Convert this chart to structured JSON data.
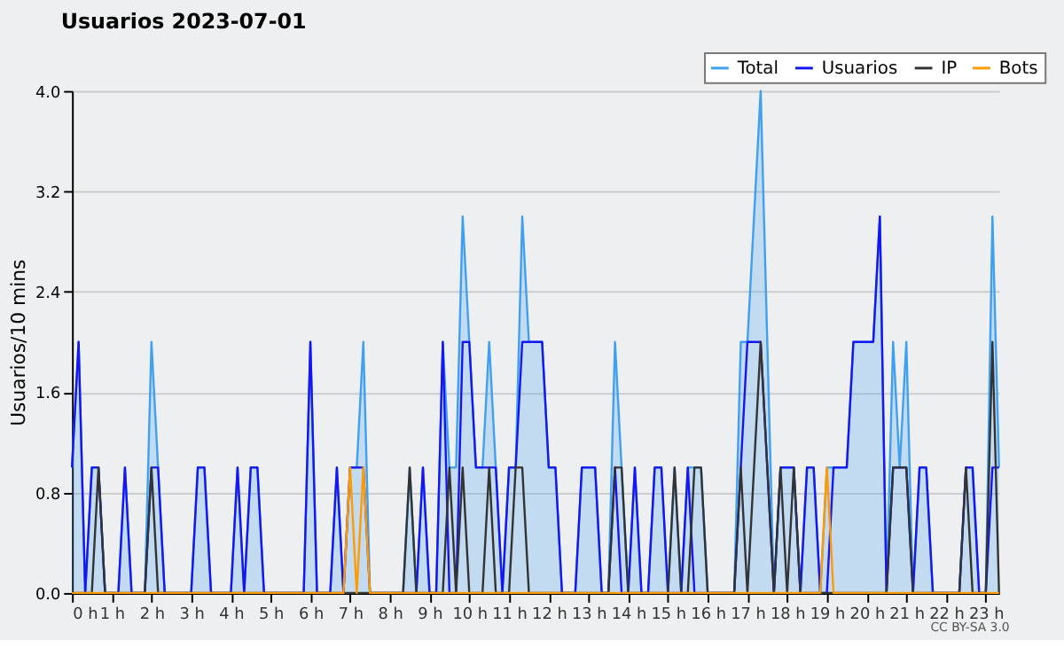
{
  "chart_data": {
    "type": "line",
    "title": "Usuarios  2023-07-01",
    "ylabel": "Usuarios/10 mins",
    "annotations": [
      "CC BY-SA 3.0"
    ],
    "x": [
      0,
      0.167,
      0.333,
      0.5,
      0.667,
      0.833,
      1,
      1.167,
      1.333,
      1.5,
      1.667,
      1.833,
      2,
      2.167,
      2.333,
      2.5,
      2.667,
      2.833,
      3,
      3.167,
      3.333,
      3.5,
      3.667,
      3.833,
      4,
      4.167,
      4.333,
      4.5,
      4.667,
      4.833,
      5,
      5.167,
      5.333,
      5.5,
      5.667,
      5.833,
      6,
      6.167,
      6.333,
      6.5,
      6.667,
      6.833,
      7,
      7.167,
      7.333,
      7.5,
      7.667,
      7.833,
      8,
      8.167,
      8.333,
      8.5,
      8.667,
      8.833,
      9,
      9.167,
      9.333,
      9.5,
      9.667,
      9.833,
      10,
      10.167,
      10.333,
      10.5,
      10.667,
      10.833,
      11,
      11.167,
      11.333,
      11.5,
      11.667,
      11.833,
      12,
      12.167,
      12.333,
      12.5,
      12.667,
      12.833,
      13,
      13.167,
      13.333,
      13.5,
      13.667,
      13.833,
      14,
      14.167,
      14.333,
      14.5,
      14.667,
      14.833,
      15,
      15.167,
      15.333,
      15.5,
      15.667,
      15.833,
      16,
      16.167,
      16.333,
      16.5,
      16.667,
      16.833,
      17,
      17.167,
      17.333,
      17.5,
      17.667,
      17.833,
      18,
      18.167,
      18.333,
      18.5,
      18.667,
      18.833,
      19,
      19.167,
      19.333,
      19.5,
      19.667,
      19.833,
      20,
      20.167,
      20.333,
      20.5,
      20.667,
      20.833,
      21,
      21.167,
      21.333,
      21.5,
      21.667,
      21.833,
      22,
      22.167,
      22.333,
      22.5,
      22.667,
      22.833,
      23,
      23.167,
      23.333
    ],
    "series": [
      {
        "name": "Total",
        "type": "area",
        "color": "#3f9ff0",
        "values": [
          1,
          2,
          0,
          1,
          1,
          0,
          0,
          0,
          1,
          0,
          0,
          0,
          2,
          1,
          0,
          0,
          0,
          0,
          0,
          1,
          1,
          0,
          0,
          0,
          0,
          1,
          0,
          1,
          1,
          0,
          0,
          0,
          0,
          0,
          0,
          0,
          2,
          0,
          0,
          0,
          1,
          0,
          1,
          1,
          2,
          0,
          0,
          0,
          0,
          0,
          0,
          1,
          0,
          1,
          0,
          0,
          2,
          1,
          1,
          3,
          2,
          1,
          1,
          2,
          1,
          0,
          1,
          1,
          3,
          2,
          2,
          2,
          1,
          1,
          0,
          0,
          0,
          1,
          1,
          1,
          0,
          0,
          2,
          1,
          0,
          1,
          0,
          0,
          1,
          1,
          0,
          1,
          0,
          1,
          1,
          1,
          0,
          0,
          0,
          0,
          0,
          2,
          2,
          3,
          4,
          2,
          0,
          1,
          1,
          1,
          0,
          1,
          1,
          0,
          1,
          1,
          1,
          1,
          2,
          2,
          2,
          2,
          3,
          0,
          2,
          1,
          2,
          0,
          1,
          1,
          0,
          0,
          0,
          0,
          0,
          1,
          1,
          0,
          0,
          3,
          1
        ]
      },
      {
        "name": "Usuarios",
        "color": "#1515f5",
        "values": [
          1,
          2,
          0,
          1,
          1,
          0,
          0,
          0,
          1,
          0,
          0,
          0,
          1,
          1,
          0,
          0,
          0,
          0,
          0,
          1,
          1,
          0,
          0,
          0,
          0,
          1,
          0,
          1,
          1,
          0,
          0,
          0,
          0,
          0,
          0,
          0,
          2,
          0,
          0,
          0,
          1,
          0,
          1,
          1,
          1,
          0,
          0,
          0,
          0,
          0,
          0,
          0,
          0,
          1,
          0,
          0,
          2,
          0,
          0,
          2,
          2,
          1,
          1,
          1,
          1,
          0,
          1,
          1,
          2,
          2,
          2,
          2,
          1,
          1,
          0,
          0,
          0,
          1,
          1,
          1,
          0,
          0,
          1,
          0,
          0,
          1,
          0,
          0,
          1,
          1,
          0,
          0,
          0,
          1,
          0,
          0,
          0,
          0,
          0,
          0,
          0,
          1,
          2,
          2,
          2,
          1,
          0,
          1,
          1,
          1,
          0,
          1,
          1,
          0,
          0,
          1,
          1,
          1,
          2,
          2,
          2,
          2,
          3,
          0,
          1,
          1,
          1,
          0,
          1,
          1,
          0,
          0,
          0,
          0,
          0,
          1,
          1,
          0,
          0,
          1,
          1
        ]
      },
      {
        "name": "IP",
        "color": "#333333",
        "values": [
          0,
          0,
          0,
          0,
          1,
          0,
          0,
          0,
          0,
          0,
          0,
          0,
          1,
          0,
          0,
          0,
          0,
          0,
          0,
          0,
          0,
          0,
          0,
          0,
          0,
          0,
          0,
          0,
          0,
          0,
          0,
          0,
          0,
          0,
          0,
          0,
          0,
          0,
          0,
          0,
          0,
          0,
          0,
          0,
          0,
          0,
          0,
          0,
          0,
          0,
          0,
          1,
          0,
          0,
          0,
          0,
          0,
          1,
          0,
          1,
          0,
          0,
          0,
          1,
          0,
          0,
          0,
          1,
          1,
          0,
          0,
          0,
          0,
          0,
          0,
          0,
          0,
          0,
          0,
          0,
          0,
          0,
          1,
          1,
          0,
          0,
          0,
          0,
          0,
          0,
          0,
          1,
          0,
          0,
          1,
          1,
          0,
          0,
          0,
          0,
          0,
          1,
          0,
          1,
          2,
          1,
          0,
          1,
          0,
          1,
          0,
          0,
          0,
          0,
          0,
          0,
          0,
          0,
          0,
          0,
          0,
          0,
          0,
          0,
          1,
          1,
          1,
          0,
          0,
          0,
          0,
          0,
          0,
          0,
          0,
          1,
          0,
          0,
          0,
          2,
          0
        ]
      },
      {
        "name": "Bots",
        "color": "#ff9a00",
        "values": [
          0,
          0,
          0,
          0,
          0,
          0,
          0,
          0,
          0,
          0,
          0,
          0,
          0,
          0,
          0,
          0,
          0,
          0,
          0,
          0,
          0,
          0,
          0,
          0,
          0,
          0,
          0,
          0,
          0,
          0,
          0,
          0,
          0,
          0,
          0,
          0,
          0,
          0,
          0,
          0,
          0,
          0,
          1,
          0,
          1,
          0,
          0,
          0,
          0,
          0,
          0,
          0,
          0,
          0,
          0,
          0,
          0,
          0,
          0,
          0,
          0,
          0,
          0,
          0,
          0,
          0,
          0,
          0,
          0,
          0,
          0,
          0,
          0,
          0,
          0,
          0,
          0,
          0,
          0,
          0,
          0,
          0,
          0,
          0,
          0,
          0,
          0,
          0,
          0,
          0,
          0,
          0,
          0,
          0,
          0,
          0,
          0,
          0,
          0,
          0,
          0,
          0,
          0,
          0,
          0,
          0,
          0,
          0,
          0,
          0,
          0,
          0,
          0,
          0,
          1,
          0,
          0,
          0,
          0,
          0,
          0,
          0,
          0,
          0,
          0,
          0,
          0,
          0,
          0,
          0,
          0,
          0,
          0,
          0,
          0,
          0,
          0,
          0,
          0,
          0,
          0
        ]
      }
    ],
    "xlim": [
      0,
      23.333
    ],
    "xticks": [
      {
        "value": 0,
        "label": "0 h"
      },
      {
        "value": 1,
        "label": "1 h"
      },
      {
        "value": 2,
        "label": "2 h"
      },
      {
        "value": 3,
        "label": "3 h"
      },
      {
        "value": 4,
        "label": "4 h"
      },
      {
        "value": 5,
        "label": "5 h"
      },
      {
        "value": 6,
        "label": "6 h"
      },
      {
        "value": 7,
        "label": "7 h"
      },
      {
        "value": 8,
        "label": "8 h"
      },
      {
        "value": 9,
        "label": "9 h"
      },
      {
        "value": 10,
        "label": "10 h"
      },
      {
        "value": 11,
        "label": "11 h"
      },
      {
        "value": 12,
        "label": "12 h"
      },
      {
        "value": 13,
        "label": "13 h"
      },
      {
        "value": 14,
        "label": "14 h"
      },
      {
        "value": 15,
        "label": "15 h"
      },
      {
        "value": 16,
        "label": "16 h"
      },
      {
        "value": 17,
        "label": "17 h"
      },
      {
        "value": 18,
        "label": "18 h"
      },
      {
        "value": 19,
        "label": "19 h"
      },
      {
        "value": 20,
        "label": "20 h"
      },
      {
        "value": 21,
        "label": "21 h"
      },
      {
        "value": 22,
        "label": "22 h"
      },
      {
        "value": 23,
        "label": "23 h"
      }
    ],
    "ylim": [
      0,
      4
    ],
    "yticks": [
      {
        "value": 0,
        "label": "0.0"
      },
      {
        "value": 0.8,
        "label": "0.8"
      },
      {
        "value": 1.6,
        "label": "1.6"
      },
      {
        "value": 2.4,
        "label": "2.4"
      },
      {
        "value": 3.2,
        "label": "3.2"
      },
      {
        "value": 4,
        "label": "4.0"
      }
    ],
    "grid": "y",
    "legend": "top right",
    "marker": "none",
    "line_style": "solid"
  }
}
